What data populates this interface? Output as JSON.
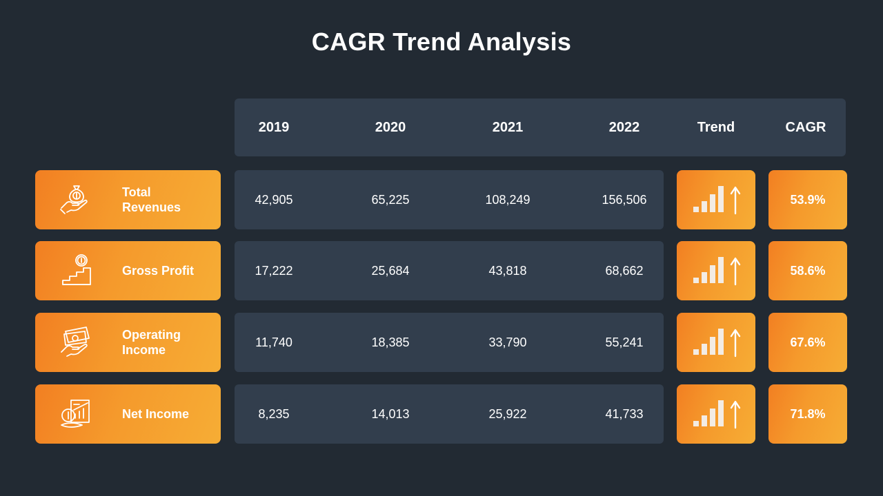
{
  "title": "CAGR Trend Analysis",
  "columns": [
    "2019",
    "2020",
    "2021",
    "2022",
    "Trend",
    "CAGR"
  ],
  "rows": [
    {
      "label": "Total Revenues",
      "icon": "money-bag-hand-icon",
      "values": [
        "42,905",
        "65,225",
        "108,249",
        "156,506"
      ],
      "trend": "up",
      "cagr": "53.9%"
    },
    {
      "label": "Gross Profit",
      "icon": "coin-stairs-icon",
      "values": [
        "17,222",
        "25,684",
        "43,818",
        "68,662"
      ],
      "trend": "up",
      "cagr": "58.6%"
    },
    {
      "label": "Operating Income",
      "icon": "cash-hand-icon",
      "values": [
        "11,740",
        "18,385",
        "33,790",
        "55,241"
      ],
      "trend": "up",
      "cagr": "67.6%"
    },
    {
      "label": "Net Income",
      "icon": "coin-chart-report-icon",
      "values": [
        "8,235",
        "14,013",
        "25,922",
        "41,733"
      ],
      "trend": "up",
      "cagr": "71.8%"
    }
  ],
  "colors": {
    "background": "#222a33",
    "panel": "#323e4d",
    "accent_start": "#f27f22",
    "accent_end": "#f6ad35",
    "text": "#ffffff"
  }
}
